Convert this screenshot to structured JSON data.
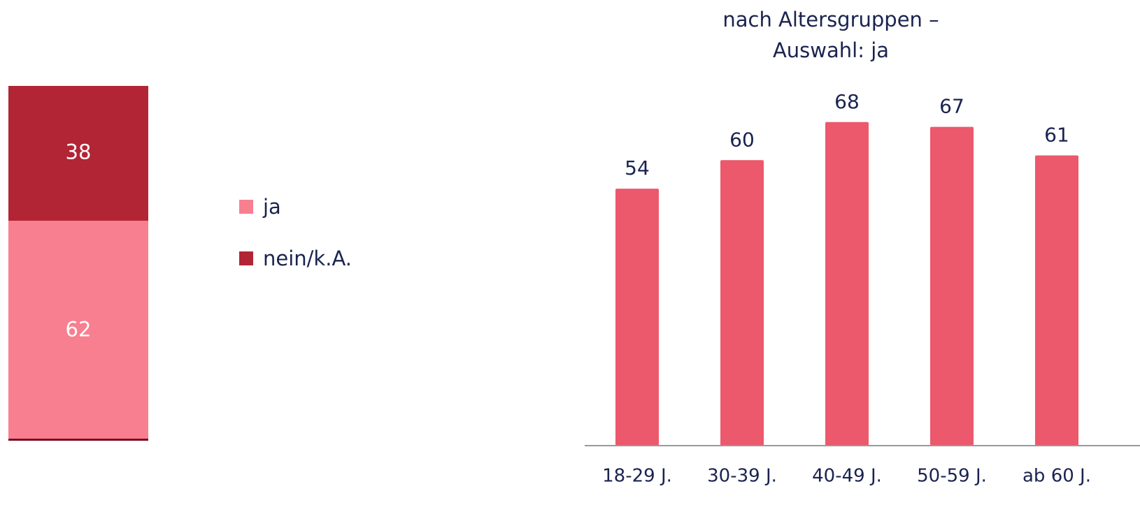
{
  "chart_data": [
    {
      "type": "stacked_bar",
      "categories": [
        null
      ],
      "ylim": [
        0,
        100
      ],
      "legend": "right",
      "series": [
        {
          "name": "ja",
          "color": "#f87f8f",
          "values": [
            62
          ]
        },
        {
          "name": "nein/k.A.",
          "color": "#b22535",
          "values": [
            38
          ]
        }
      ]
    },
    {
      "type": "bar",
      "title": "nach Altersgruppen – Auswahl: ja",
      "color": "#ec586c",
      "categories": [
        "18-29 J.",
        "30-39 J.",
        "40-49 J.",
        "50-59 J.",
        "ab 60 J."
      ],
      "values": [
        54,
        60,
        68,
        67,
        61
      ],
      "ylim": [
        0,
        80
      ]
    }
  ]
}
